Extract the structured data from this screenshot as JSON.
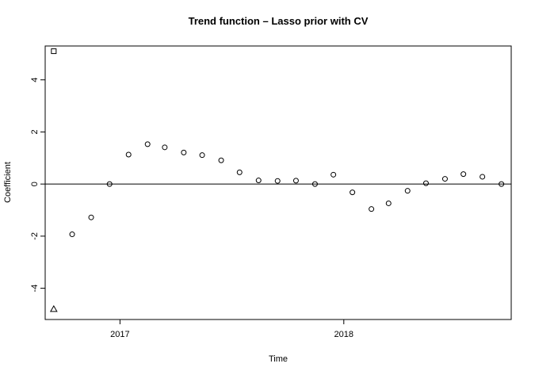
{
  "chart_data": {
    "type": "scatter",
    "title": "Trend function – Lasso prior with CV",
    "xlabel": "Time",
    "ylabel": "Coefficient",
    "x_ticks": [
      {
        "value": "2017-01-01",
        "label": "2017"
      },
      {
        "value": "2018-01-01",
        "label": "2018"
      }
    ],
    "y_ticks": [
      -4,
      -2,
      0,
      2,
      4
    ],
    "xlim": [
      "2016-09-01",
      "2018-10-01"
    ],
    "ylim": [
      -5.2,
      5.3
    ],
    "reference_line_y": 0,
    "grid": false,
    "legend": "none",
    "series": [
      {
        "marker": "square",
        "points": [
          {
            "x": "2016-09-15",
            "y": 5.1
          }
        ]
      },
      {
        "marker": "triangle",
        "points": [
          {
            "x": "2016-09-15",
            "y": -4.8
          }
        ]
      },
      {
        "marker": "circle",
        "points": [
          {
            "x": "2016-10-15",
            "y": -1.93
          },
          {
            "x": "2016-11-15",
            "y": -1.28
          },
          {
            "x": "2016-12-15",
            "y": 0.0
          },
          {
            "x": "2017-01-15",
            "y": 1.13
          },
          {
            "x": "2017-02-15",
            "y": 1.53
          },
          {
            "x": "2017-03-15",
            "y": 1.41
          },
          {
            "x": "2017-04-15",
            "y": 1.21
          },
          {
            "x": "2017-05-15",
            "y": 1.11
          },
          {
            "x": "2017-06-15",
            "y": 0.91
          },
          {
            "x": "2017-07-15",
            "y": 0.45
          },
          {
            "x": "2017-08-15",
            "y": 0.14
          },
          {
            "x": "2017-09-15",
            "y": 0.12
          },
          {
            "x": "2017-10-15",
            "y": 0.13
          },
          {
            "x": "2017-11-15",
            "y": 0.0
          },
          {
            "x": "2017-12-15",
            "y": 0.36
          },
          {
            "x": "2018-01-15",
            "y": -0.32
          },
          {
            "x": "2018-02-15",
            "y": -0.96
          },
          {
            "x": "2018-03-15",
            "y": -0.74
          },
          {
            "x": "2018-04-15",
            "y": -0.26
          },
          {
            "x": "2018-05-15",
            "y": 0.03
          },
          {
            "x": "2018-06-15",
            "y": 0.2
          },
          {
            "x": "2018-07-15",
            "y": 0.38
          },
          {
            "x": "2018-08-15",
            "y": 0.28
          },
          {
            "x": "2018-09-15",
            "y": 0.0
          }
        ]
      }
    ]
  }
}
